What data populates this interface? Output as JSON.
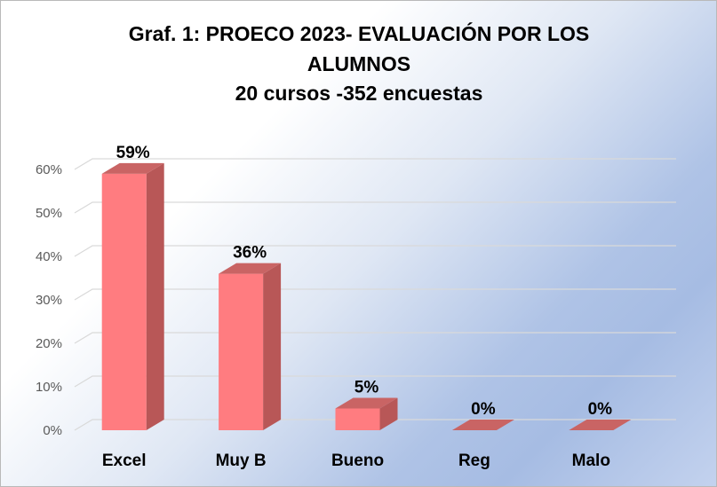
{
  "chart_data": {
    "type": "bar",
    "title_lines": [
      "Graf.  1: PROECO 2023- EVALUACIÓN POR LOS",
      "ALUMNOS",
      "20 cursos -352 encuestas"
    ],
    "categories": [
      "Excel",
      "Muy B",
      "Bueno",
      "Reg",
      "Malo"
    ],
    "values": [
      59,
      36,
      5,
      0,
      0
    ],
    "data_labels": [
      "59%",
      "36%",
      "5%",
      "0%",
      "0%"
    ],
    "y_ticks": [
      0,
      10,
      20,
      30,
      40,
      50,
      60
    ],
    "y_tick_labels": [
      "0%",
      "10%",
      "20%",
      "30%",
      "40%",
      "50%",
      "60%"
    ],
    "ylim": [
      0,
      60
    ],
    "grid": true,
    "legend": "none",
    "colors": {
      "bar_front": "#ff7c80",
      "bar_side": "#b85757",
      "bar_top": "#c96464",
      "grid": "#d9d9d9"
    }
  }
}
